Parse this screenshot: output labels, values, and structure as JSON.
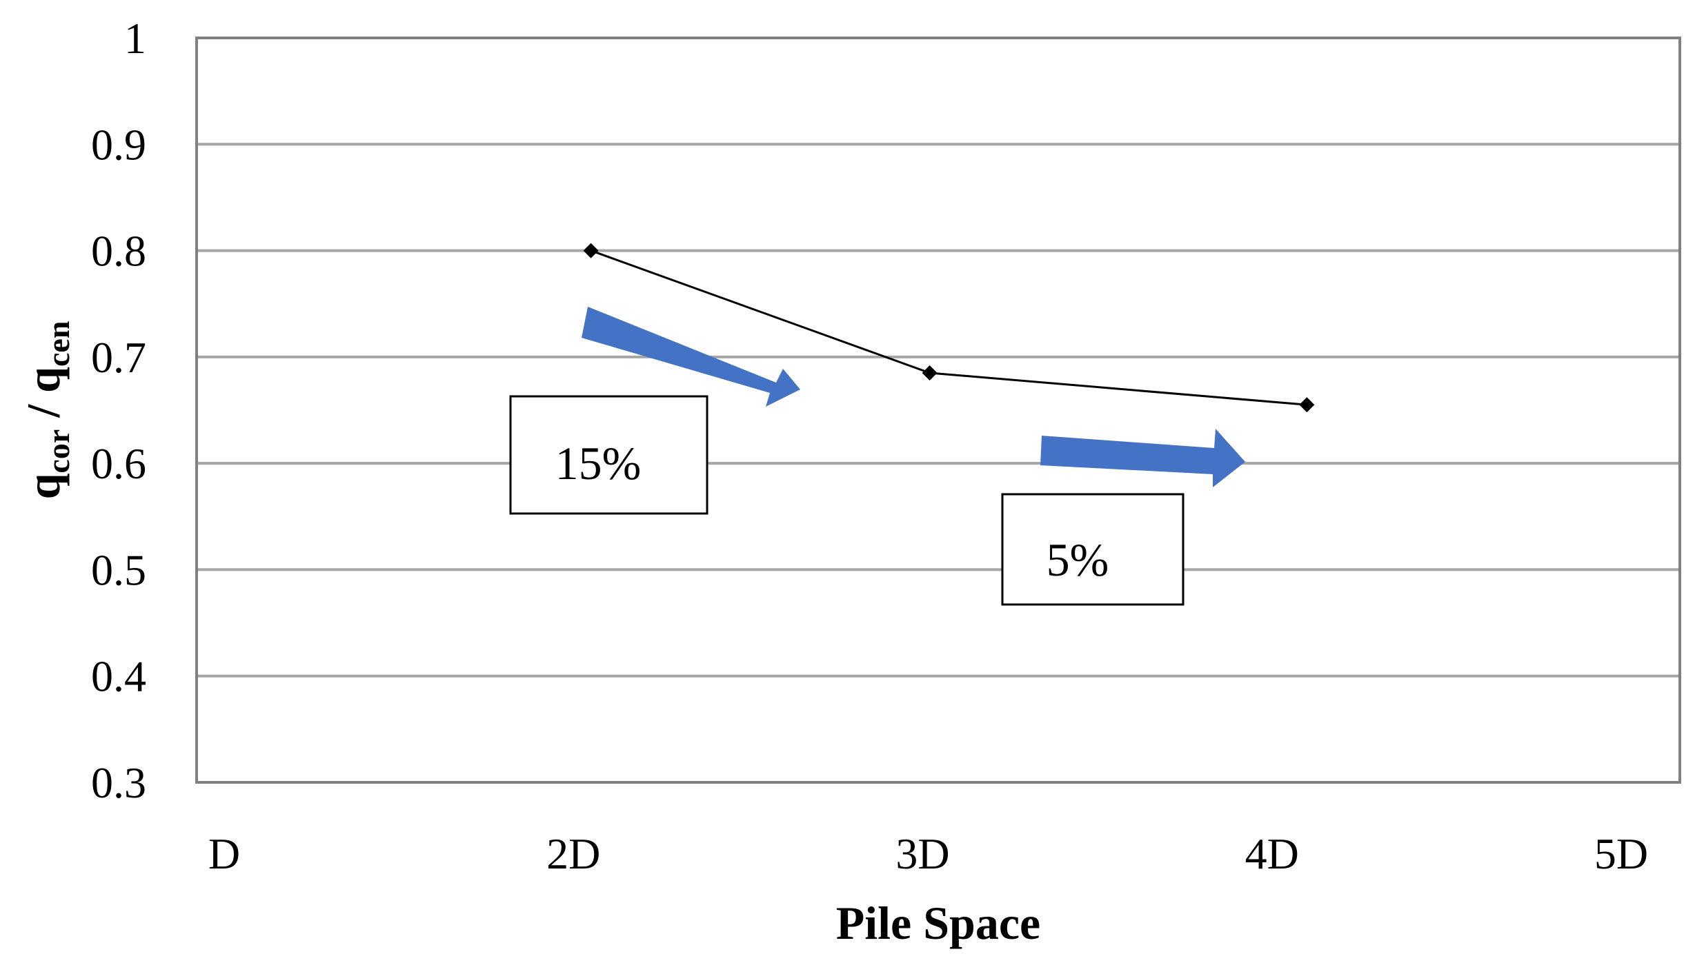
{
  "chart_data": {
    "type": "line",
    "title": "",
    "xlabel": "Pile Space",
    "ylabel": {
      "base1": "q",
      "sub1": "cor",
      "sep": " / ",
      "base2": "q",
      "sub2": "cen"
    },
    "x_ticks": [
      "D",
      "2D",
      "3D",
      "4D",
      "5D"
    ],
    "y_ticks": [
      "0.3",
      "0.4",
      "0.5",
      "0.6",
      "0.7",
      "0.8",
      "0.9",
      "1"
    ],
    "ylim": [
      0.3,
      1
    ],
    "grid": true,
    "series": [
      {
        "points": [
          {
            "x": 2.05,
            "y": 0.8
          },
          {
            "x": 3.02,
            "y": 0.685
          },
          {
            "x": 4.1,
            "y": 0.655
          }
        ]
      }
    ],
    "annotations": [
      {
        "text": "15%",
        "arrow_color": "#4472c4"
      },
      {
        "text": "5%",
        "arrow_color": "#4472c4"
      }
    ],
    "colors": {
      "line": "#000000",
      "gridline": "#a6a6a6",
      "frame": "#808080",
      "arrow": "#4472c4"
    }
  }
}
